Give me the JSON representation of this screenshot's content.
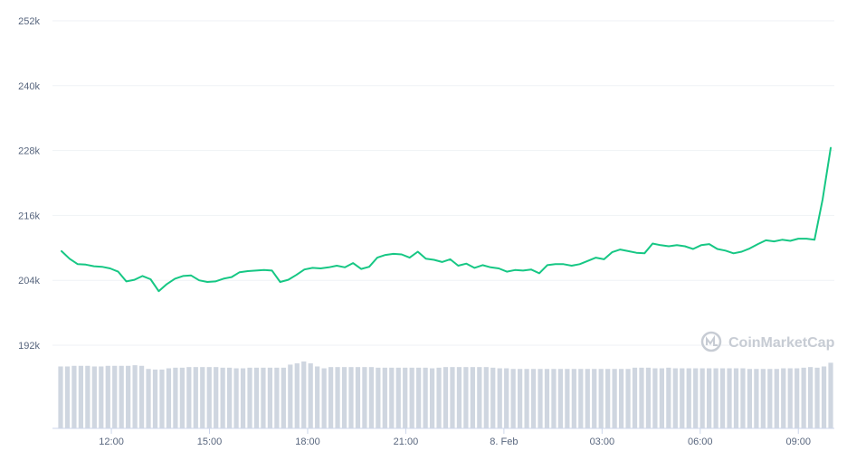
{
  "colors": {
    "line": "#16c784",
    "volume": "#cfd6e0",
    "grid": "#eff2f5",
    "axis_text": "#58667e",
    "watermark": "#c7ccd4"
  },
  "watermark": "CoinMarketCap",
  "chart_data": [
    {
      "type": "line",
      "title": "",
      "xlabel": "",
      "ylabel": "",
      "y_tick_labels": [
        "192k",
        "204k",
        "216k",
        "228k",
        "240k",
        "252k"
      ],
      "y_ticks": [
        192000,
        204000,
        216000,
        228000,
        240000,
        252000
      ],
      "ylim": [
        180000,
        252000
      ],
      "x_tick_labels": [
        "12:00",
        "15:00",
        "18:00",
        "21:00",
        "8. Feb",
        "03:00",
        "06:00",
        "09:00"
      ],
      "x_ticks_hours_offset": [
        0,
        3,
        6,
        9,
        12,
        15,
        18,
        21
      ],
      "xlim_hours_offset": [
        -1.8,
        22.1
      ],
      "grid": true,
      "legend": "none",
      "series": [
        {
          "values": [
            209400,
            208000,
            207000,
            206900,
            206600,
            206500,
            206200,
            205600,
            203800,
            204100,
            204800,
            204200,
            202000,
            203300,
            204300,
            204800,
            204900,
            204000,
            203700,
            203800,
            204300,
            204600,
            205500,
            205700,
            205800,
            205900,
            205800,
            203700,
            204100,
            205000,
            206000,
            206300,
            206200,
            206400,
            206700,
            206400,
            207200,
            206100,
            206500,
            208200,
            208700,
            208900,
            208800,
            208200,
            209300,
            208000,
            207800,
            207400,
            207900,
            206700,
            207100,
            206300,
            206800,
            206400,
            206200,
            205600,
            205900,
            205800,
            206000,
            205300,
            206800,
            207000,
            207000,
            206700,
            207000,
            207600,
            208200,
            207900,
            209200,
            209700,
            209400,
            209100,
            209000,
            210800,
            210500,
            210300,
            210500,
            210300,
            209800,
            210500,
            210700,
            209800,
            209500,
            209000,
            209300,
            209900,
            210700,
            211400,
            211200,
            211500,
            211300,
            211700,
            211700,
            211500,
            219000,
            228500
          ]
        },
        {
          "name": "",
          "type": "bar",
          "axis": "volume",
          "values": [
            1.0,
            1.0,
            1.01,
            1.01,
            1.01,
            1.0,
            1.0,
            1.01,
            1.01,
            1.01,
            1.01,
            1.02,
            1.01,
            0.96,
            0.95,
            0.95,
            0.97,
            0.98,
            0.98,
            0.99,
            0.99,
            0.99,
            0.99,
            0.99,
            0.98,
            0.98,
            0.97,
            0.97,
            0.98,
            0.98,
            0.98,
            0.98,
            0.98,
            0.98,
            1.03,
            1.05,
            1.08,
            1.05,
            1.0,
            0.97,
            0.99,
            0.99,
            0.99,
            0.99,
            0.99,
            0.99,
            0.99,
            0.98,
            0.98,
            0.98,
            0.98,
            0.98,
            0.98,
            0.98,
            0.98,
            0.97,
            0.98,
            0.99,
            0.99,
            0.99,
            0.99,
            0.99,
            0.99,
            0.99,
            0.98,
            0.97,
            0.97,
            0.96,
            0.96,
            0.96,
            0.96,
            0.96,
            0.96,
            0.96,
            0.96,
            0.96,
            0.96,
            0.96,
            0.96,
            0.96,
            0.96,
            0.96,
            0.96,
            0.96,
            0.96,
            0.98,
            0.98,
            0.98,
            0.97,
            0.97,
            0.98,
            0.97,
            0.97,
            0.97,
            0.97,
            0.97,
            0.97,
            0.97,
            0.97,
            0.97,
            0.97,
            0.97,
            0.96,
            0.96,
            0.96,
            0.96,
            0.96,
            0.97,
            0.97,
            0.97,
            0.98,
            0.99,
            0.98,
            1.0,
            1.06
          ]
        }
      ]
    }
  ]
}
